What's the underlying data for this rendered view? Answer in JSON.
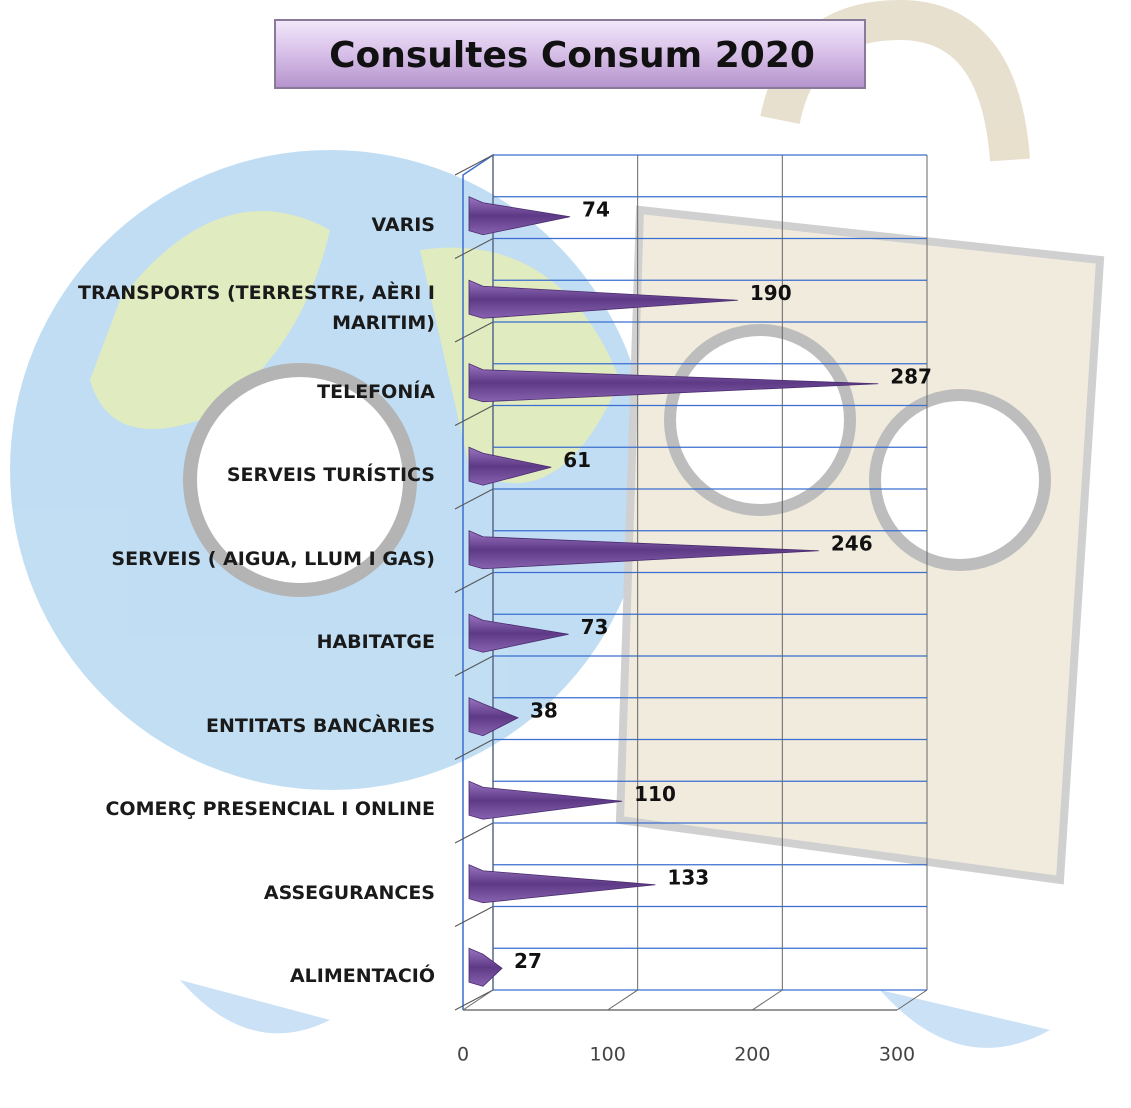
{
  "chart_data": {
    "type": "bar",
    "orientation": "horizontal",
    "title": "Consultes Consum 2020",
    "categories": [
      "VARIS",
      "TRANSPORTS (TERRESTRE, AÈRI I MARITIM)",
      "TELEFONÍA",
      "SERVEIS TURÍSTICS",
      "SERVEIS  ( AIGUA, LLUM I GAS)",
      "HABITATGE",
      "ENTITATS BANCÀRIES",
      "COMERÇ PRESENCIAL I ONLINE",
      "ASSEGURANCES",
      "ALIMENTACIÓ"
    ],
    "values": [
      74,
      190,
      287,
      61,
      246,
      73,
      38,
      110,
      133,
      27
    ],
    "color": "#7b4fa0",
    "xlim": [
      0,
      300
    ],
    "xticks": [
      0,
      100,
      200,
      300
    ],
    "grid": true
  }
}
